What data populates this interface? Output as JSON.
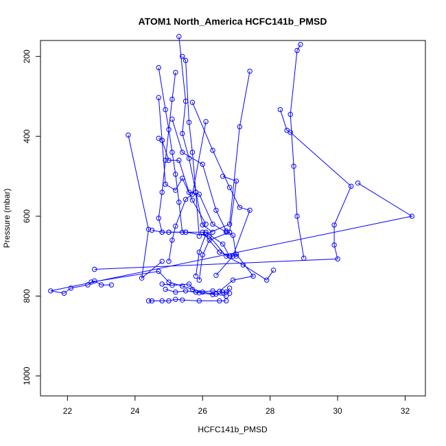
{
  "chart_data": {
    "type": "scatter",
    "title": "ATOM1 North_America HCFC141b_PMSD",
    "xlabel": "HCFC141b_PMSD",
    "ylabel": "Pressure (mbar)",
    "xlim": [
      21.2,
      32.6
    ],
    "ylim": [
      1050,
      160
    ],
    "y_reversed": true,
    "x_ticks": [
      22,
      24,
      26,
      28,
      30,
      32
    ],
    "y_ticks": [
      200,
      400,
      600,
      800,
      1000
    ],
    "grid": false,
    "legend": "none",
    "series_color": "#0000ff",
    "profiles": [
      {
        "x": [
          28.9,
          28.8,
          28.6,
          28.7,
          28.8,
          29.0
        ],
        "y": [
          170,
          185,
          345,
          475,
          600,
          705
        ]
      },
      {
        "x": [
          28.3,
          28.5,
          28.6,
          30.4,
          29.9,
          29.9,
          30.0,
          22.8
        ],
        "y": [
          333,
          385,
          390,
          525,
          622,
          672,
          707,
          733
        ]
      },
      {
        "x": [
          30.6,
          32.2,
          21.5,
          21.9,
          22.1,
          22.6,
          22.8,
          23.0,
          23.3
        ],
        "y": [
          517,
          600,
          787,
          793,
          780,
          772,
          762,
          772,
          772
        ]
      },
      {
        "x": [
          23.8,
          24.4,
          24.2,
          24.8
        ],
        "y": [
          397,
          633,
          755,
          713
        ]
      },
      {
        "x": [
          25.2,
          25.1,
          24.9,
          24.8,
          24.7,
          24.8
        ],
        "y": [
          240,
          307,
          460,
          540,
          605,
          640
        ]
      },
      {
        "x": [
          25.4,
          25.5,
          25.6,
          25.7,
          25.8,
          25.9
        ],
        "y": [
          200,
          210,
          365,
          440,
          540,
          650
        ]
      },
      {
        "x": [
          24.7,
          24.9,
          25.0,
          25.1,
          25.2,
          25.3,
          25.4
        ],
        "y": [
          228,
          333,
          383,
          440,
          495,
          565,
          640
        ]
      },
      {
        "x": [
          25.3,
          25.5,
          25.4,
          25.6,
          25.8,
          26.0,
          26.3
        ],
        "y": [
          150,
          312,
          393,
          455,
          540,
          622,
          640
        ]
      },
      {
        "x": [
          24.7,
          24.8,
          24.9,
          25.2,
          25.4,
          25.7,
          26.1
        ],
        "y": [
          303,
          410,
          520,
          535,
          505,
          560,
          620
        ]
      },
      {
        "x": [
          24.7,
          24.8,
          25.0,
          25.3,
          25.6,
          25.9,
          26.3,
          26.7
        ],
        "y": [
          405,
          410,
          460,
          460,
          540,
          545,
          620,
          640
        ]
      },
      {
        "x": [
          26.1,
          25.7,
          25.5,
          25.2,
          25.1,
          25.0
        ],
        "y": [
          363,
          545,
          558,
          625,
          660,
          713
        ]
      },
      {
        "x": [
          27.4,
          27.1,
          26.8,
          26.1,
          25.9,
          25.8
        ],
        "y": [
          237,
          376,
          620,
          645,
          690,
          750
        ]
      },
      {
        "x": [
          26.6,
          27.0,
          26.8,
          26.2,
          26.0,
          25.9
        ],
        "y": [
          500,
          512,
          640,
          660,
          697,
          760
        ]
      },
      {
        "x": [
          25.1,
          25.4,
          26.0,
          26.4,
          26.7,
          26.9,
          27.0
        ],
        "y": [
          357,
          440,
          470,
          585,
          637,
          648,
          700
        ]
      },
      {
        "x": [
          25.7,
          26.3,
          26.8,
          27.1,
          27.4,
          26.9,
          26.4
        ],
        "y": [
          315,
          435,
          528,
          578,
          585,
          700,
          748
        ]
      },
      {
        "x": [
          24.5,
          24.8,
          25.0,
          25.5,
          26.1,
          26.6,
          26.8
        ],
        "y": [
          635,
          640,
          640,
          640,
          640,
          670,
          700
        ]
      },
      {
        "x": [
          25.0,
          25.5,
          26.2,
          26.7,
          27.2,
          27.9,
          28.1
        ],
        "y": [
          640,
          640,
          650,
          700,
          722,
          760,
          735
        ]
      },
      {
        "x": [
          26.0,
          26.5,
          26.8,
          27.0,
          27.5,
          26.9,
          26.5
        ],
        "y": [
          640,
          690,
          700,
          695,
          750,
          760,
          788
        ]
      },
      {
        "x": [
          22.7,
          24.7,
          25.0,
          25.4,
          25.7,
          26.0,
          26.4,
          26.7
        ],
        "y": [
          765,
          738,
          765,
          775,
          783,
          790,
          795,
          800
        ]
      },
      {
        "x": [
          24.8,
          25.1,
          25.6,
          25.8,
          26.3,
          26.6,
          26.8
        ],
        "y": [
          770,
          773,
          770,
          790,
          787,
          790,
          793
        ]
      },
      {
        "x": [
          24.9,
          25.2,
          25.5,
          25.9,
          26.3,
          26.7,
          26.8
        ],
        "y": [
          783,
          790,
          787,
          792,
          796,
          790,
          780
        ]
      },
      {
        "x": [
          24.4,
          24.5,
          24.8,
          25.0,
          25.2,
          25.4,
          25.9,
          26.5,
          26.7
        ],
        "y": [
          812,
          812,
          812,
          812,
          808,
          810,
          812,
          812,
          812
        ]
      }
    ]
  }
}
